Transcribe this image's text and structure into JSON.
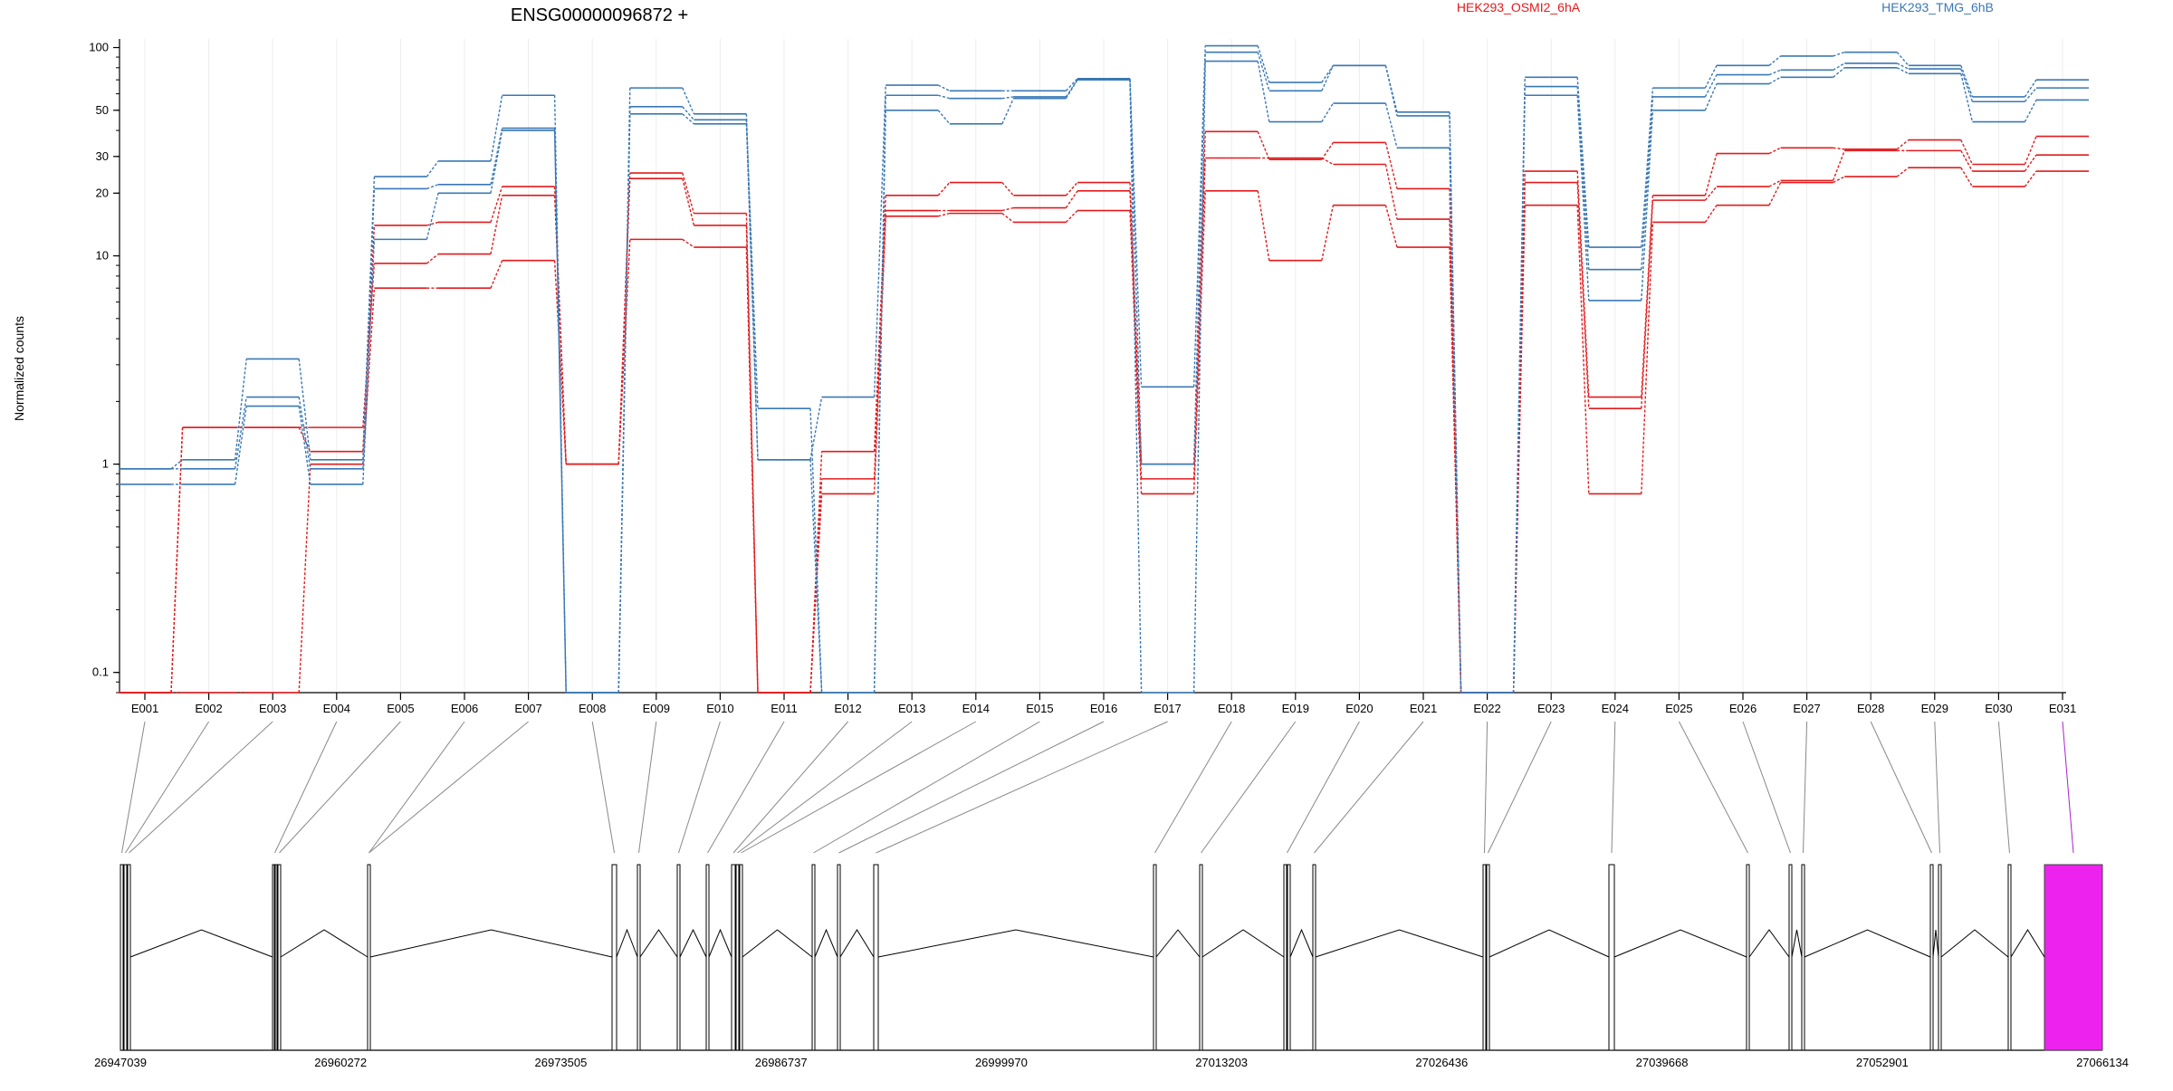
{
  "chart_data": {
    "type": "line",
    "title": "ENSG00000096872 +",
    "ylabel": "Normalized counts",
    "y_scale": "log",
    "ylim": [
      0.08,
      110
    ],
    "y_ticks": [
      {
        "value": 0.1,
        "label": "0.1"
      },
      {
        "value": 1,
        "label": "1"
      },
      {
        "value": 10,
        "label": "10"
      },
      {
        "value": 20,
        "label": "20"
      },
      {
        "value": 30,
        "label": "30"
      },
      {
        "value": 50,
        "label": "50"
      },
      {
        "value": 100,
        "label": "100"
      }
    ],
    "categories": [
      "E001",
      "E002",
      "E003",
      "E004",
      "E005",
      "E006",
      "E007",
      "E008",
      "E009",
      "E010",
      "E011",
      "E012",
      "E013",
      "E014",
      "E015",
      "E016",
      "E017",
      "E018",
      "E019",
      "E020",
      "E021",
      "E022",
      "E023",
      "E024",
      "E025",
      "E026",
      "E027",
      "E028",
      "E029",
      "E030",
      "E031"
    ],
    "legend": [
      {
        "name": "HEK293_OSMI2_6hA",
        "color": "#e31a1c"
      },
      {
        "name": "HEK293_TMG_6hB",
        "color": "#3a78b5"
      }
    ],
    "series": [
      {
        "name": "HEK293_OSMI2_6hA",
        "color": "#e31a1c",
        "values": [
          0.08,
          0.08,
          0.08,
          1.0,
          7.0,
          7.0,
          9.5,
          1.0,
          12.0,
          11.0,
          0.08,
          0.72,
          15.5,
          16.0,
          14.5,
          16.5,
          0.72,
          20.5,
          9.5,
          17.5,
          11.0,
          0.08,
          17.5,
          0.72,
          14.5,
          17.5,
          22.5,
          24.0,
          26.5,
          21.5,
          25.5
        ]
      },
      {
        "name": "HEK293_OSMI2_6hA",
        "color": "#e31a1c",
        "values": [
          0.08,
          1.5,
          1.5,
          1.5,
          9.2,
          10.2,
          19.5,
          1.0,
          23.5,
          14.0,
          0.08,
          0.85,
          16.5,
          16.5,
          17.0,
          20.5,
          0.85,
          29.5,
          29.5,
          27.5,
          15.0,
          0.08,
          22.5,
          1.85,
          18.5,
          21.5,
          23.0,
          32.0,
          32.0,
          25.5,
          30.5
        ]
      },
      {
        "name": "HEK293_OSMI2_6hA",
        "color": "#e31a1c",
        "values": [
          0.08,
          1.5,
          1.5,
          1.15,
          14.0,
          14.5,
          21.5,
          1.0,
          25.0,
          16.0,
          0.08,
          1.15,
          19.5,
          22.5,
          19.5,
          22.5,
          1.0,
          39.5,
          29.0,
          35.0,
          21.0,
          0.08,
          25.5,
          2.1,
          19.5,
          31.0,
          33.0,
          32.5,
          36.0,
          27.5,
          37.5
        ]
      },
      {
        "name": "HEK293_TMG_6hB",
        "color": "#3a78b5",
        "values": [
          0.8,
          0.8,
          1.9,
          0.8,
          12.0,
          20.0,
          40.0,
          0.08,
          48.0,
          43.0,
          1.05,
          0.08,
          50.0,
          43.0,
          57.0,
          70.0,
          0.08,
          86.0,
          44.0,
          54.0,
          33.0,
          0.08,
          59.0,
          6.1,
          50.0,
          67.0,
          72.0,
          80.0,
          75.0,
          44.0,
          56.0
        ]
      },
      {
        "name": "HEK293_TMG_6hB",
        "color": "#3a78b5",
        "values": [
          0.95,
          0.95,
          2.1,
          0.95,
          21.0,
          22.0,
          41.0,
          0.08,
          52.0,
          45.0,
          1.85,
          0.08,
          59.0,
          57.0,
          58.0,
          70.0,
          1.0,
          95.0,
          62.0,
          82.0,
          47.0,
          0.08,
          65.0,
          8.6,
          58.0,
          74.0,
          78.0,
          84.0,
          79.0,
          55.0,
          64.0
        ]
      },
      {
        "name": "HEK293_TMG_6hB",
        "color": "#3a78b5",
        "values": [
          0.95,
          1.05,
          3.2,
          1.05,
          24.0,
          28.5,
          59.0,
          0.08,
          64.0,
          48.0,
          1.05,
          2.1,
          66.0,
          62.0,
          62.0,
          71.0,
          2.35,
          102.0,
          68.0,
          82.0,
          49.0,
          0.08,
          72.0,
          11.0,
          64.0,
          82.0,
          91.0,
          95.0,
          82.0,
          58.0,
          70.0
        ]
      }
    ],
    "gene_model": {
      "coordinate_labels": [
        "26947039",
        "26960272",
        "26973505",
        "26986737",
        "26999970",
        "27013203",
        "27026436",
        "27039668",
        "27052901",
        "27066134"
      ],
      "coordinate_range": [
        26947039,
        27066134
      ],
      "highlighted_exon": "E031",
      "highlight_color": "#ee22ee"
    }
  }
}
